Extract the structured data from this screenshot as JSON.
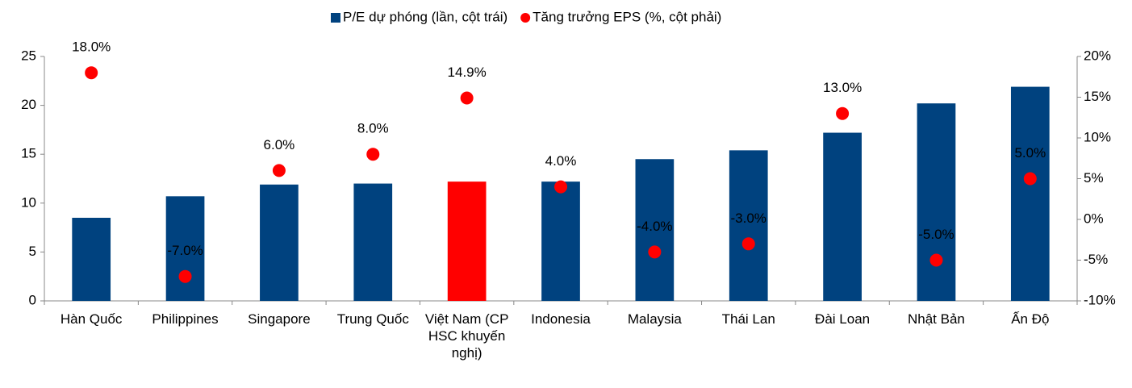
{
  "chart_data": {
    "type": "bar_scatter",
    "categories": [
      "Hàn Quốc",
      "Philippines",
      "Singapore",
      "Trung Quốc",
      "Việt Nam (CP HSC khuyến nghị)",
      "Indonesia",
      "Malaysia",
      "Thái Lan",
      "Đài Loan",
      "Nhật Bản",
      "Ấn Độ"
    ],
    "series": [
      {
        "name": "P/E dự phóng (lần, cột trái)",
        "type": "bar",
        "color": "#00427f",
        "colors": [
          "#00427f",
          "#00427f",
          "#00427f",
          "#00427f",
          "#ff0000",
          "#00427f",
          "#00427f",
          "#00427f",
          "#00427f",
          "#00427f",
          "#00427f"
        ],
        "values": [
          8.5,
          10.7,
          11.9,
          12.0,
          12.2,
          12.2,
          14.5,
          15.4,
          17.2,
          20.2,
          21.9
        ]
      },
      {
        "name": "Tăng trưởng EPS (%, cột phải)",
        "type": "scatter",
        "axis": "y2",
        "color": "#ff0000",
        "values": [
          18,
          -7,
          6,
          8,
          14.9,
          4,
          -4,
          -3,
          13,
          -5,
          5
        ],
        "value_labels": [
          "18.0%",
          "-7.0%",
          "6.0%",
          "8.0%",
          "14.9%",
          "4.0%",
          "-4.0%",
          "-3.0%",
          "13.0%",
          "-5.0%",
          "5.0%"
        ]
      }
    ],
    "ylim": [
      0,
      25
    ],
    "yticks": [
      0,
      5,
      10,
      15,
      20,
      25
    ],
    "y2lim": [
      -10,
      20
    ],
    "y2ticks": [
      {
        "value": -10,
        "label": "-10%"
      },
      {
        "value": -5,
        "label": "-5%"
      },
      {
        "value": 0,
        "label": "0%"
      },
      {
        "value": 5,
        "label": "5%"
      },
      {
        "value": 10,
        "label": "10%"
      },
      {
        "value": 15,
        "label": "15%"
      },
      {
        "value": 20,
        "label": "20%"
      }
    ],
    "grid": false,
    "legend": "top"
  }
}
